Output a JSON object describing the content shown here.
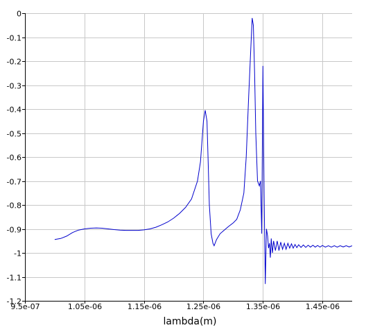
{
  "chart_data": {
    "type": "line",
    "title": "",
    "xlabel": "lambda(m)",
    "ylabel": "",
    "xlim": [
      9.5e-07,
      1.5e-06
    ],
    "ylim": [
      -1.2,
      0
    ],
    "grid": true,
    "xticks": [
      {
        "value": 9.5e-07,
        "label": "9.5e-07"
      },
      {
        "value": 1.05e-06,
        "label": "1.05e-06"
      },
      {
        "value": 1.15e-06,
        "label": "1.15e-06"
      },
      {
        "value": 1.25e-06,
        "label": "1.25e-06"
      },
      {
        "value": 1.35e-06,
        "label": "1.35e-06"
      },
      {
        "value": 1.45e-06,
        "label": "1.45e-06"
      }
    ],
    "yticks": [
      {
        "value": 0,
        "label": "0"
      },
      {
        "value": -0.1,
        "label": "-0.1"
      },
      {
        "value": -0.2,
        "label": "-0.2"
      },
      {
        "value": -0.3,
        "label": "-0.3"
      },
      {
        "value": -0.4,
        "label": "-0.4"
      },
      {
        "value": -0.5,
        "label": "-0.5"
      },
      {
        "value": -0.6,
        "label": "-0.6"
      },
      {
        "value": -0.7,
        "label": "-0.7"
      },
      {
        "value": -0.8,
        "label": "-0.8"
      },
      {
        "value": -0.9,
        "label": "-0.9"
      },
      {
        "value": -1,
        "label": "-1"
      },
      {
        "value": -1.1,
        "label": "-1.1"
      },
      {
        "value": -1.2,
        "label": "-1.2"
      }
    ],
    "series": [
      {
        "color": "#0000cc",
        "x": [
          1e-06,
          1.01e-06,
          1.02e-06,
          1.03e-06,
          1.04e-06,
          1.05e-06,
          1.06e-06,
          1.07e-06,
          1.08e-06,
          1.09e-06,
          1.1e-06,
          1.11e-06,
          1.12e-06,
          1.13e-06,
          1.14e-06,
          1.15e-06,
          1.16e-06,
          1.17e-06,
          1.18e-06,
          1.19e-06,
          1.2e-06,
          1.21e-06,
          1.22e-06,
          1.23e-06,
          1.24e-06,
          1.245e-06,
          1.25e-06,
          1.253e-06,
          1.256e-06,
          1.258e-06,
          1.26e-06,
          1.263e-06,
          1.266e-06,
          1.268e-06,
          1.272e-06,
          1.278e-06,
          1.285e-06,
          1.292e-06,
          1.3e-06,
          1.306e-06,
          1.312e-06,
          1.318e-06,
          1.322e-06,
          1.326e-06,
          1.329e-06,
          1.332e-06,
          1.334e-06,
          1.336e-06,
          1.338e-06,
          1.341e-06,
          1.344e-06,
          1.346e-06,
          1.348e-06,
          1.35e-06,
          1.352e-06,
          1.354e-06,
          1.356e-06,
          1.358e-06,
          1.3595e-06,
          1.361e-06,
          1.3625e-06,
          1.364e-06,
          1.366e-06,
          1.368e-06,
          1.371e-06,
          1.374e-06,
          1.377e-06,
          1.38e-06,
          1.383e-06,
          1.386e-06,
          1.389e-06,
          1.392e-06,
          1.395e-06,
          1.398e-06,
          1.401e-06,
          1.404e-06,
          1.407e-06,
          1.41e-06,
          1.414e-06,
          1.418e-06,
          1.422e-06,
          1.426e-06,
          1.43e-06,
          1.434e-06,
          1.438e-06,
          1.442e-06,
          1.446e-06,
          1.45e-06,
          1.455e-06,
          1.46e-06,
          1.465e-06,
          1.47e-06,
          1.475e-06,
          1.48e-06,
          1.485e-06,
          1.49e-06,
          1.495e-06,
          1.5e-06
        ],
        "y": [
          -0.944,
          -0.94,
          -0.93,
          -0.915,
          -0.905,
          -0.9,
          -0.897,
          -0.896,
          -0.897,
          -0.9,
          -0.903,
          -0.905,
          -0.906,
          -0.906,
          -0.906,
          -0.904,
          -0.9,
          -0.893,
          -0.883,
          -0.871,
          -0.855,
          -0.835,
          -0.81,
          -0.775,
          -0.7,
          -0.62,
          -0.45,
          -0.405,
          -0.45,
          -0.62,
          -0.8,
          -0.92,
          -0.96,
          -0.97,
          -0.945,
          -0.92,
          -0.905,
          -0.89,
          -0.875,
          -0.86,
          -0.82,
          -0.75,
          -0.6,
          -0.35,
          -0.18,
          -0.02,
          -0.05,
          -0.25,
          -0.5,
          -0.7,
          -0.72,
          -0.7,
          -0.92,
          -0.22,
          -0.75,
          -1.13,
          -0.9,
          -0.93,
          -0.98,
          -0.96,
          -1.02,
          -0.94,
          -1.0,
          -0.95,
          -0.99,
          -0.95,
          -0.99,
          -0.955,
          -0.985,
          -0.96,
          -0.985,
          -0.96,
          -0.98,
          -0.962,
          -0.98,
          -0.965,
          -0.978,
          -0.966,
          -0.977,
          -0.967,
          -0.977,
          -0.968,
          -0.976,
          -0.968,
          -0.976,
          -0.969,
          -0.976,
          -0.969,
          -0.976,
          -0.97,
          -0.976,
          -0.97,
          -0.976,
          -0.97,
          -0.975,
          -0.97,
          -0.975,
          -0.97
        ]
      }
    ]
  }
}
